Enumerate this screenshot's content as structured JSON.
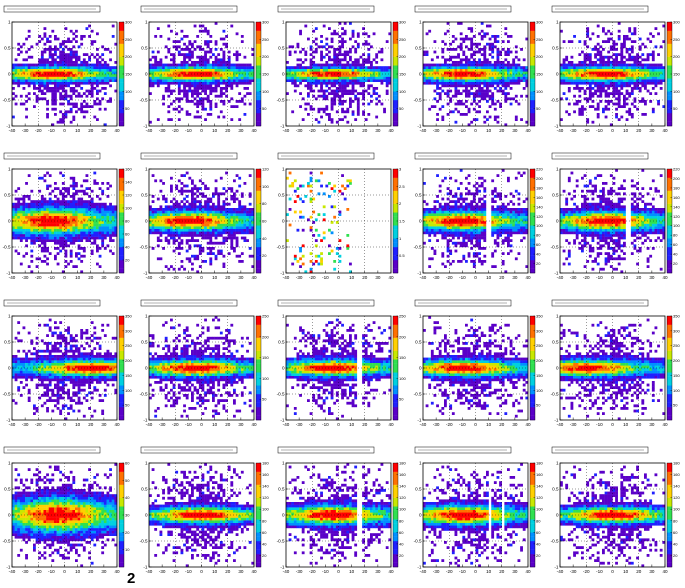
{
  "page_number": "2",
  "colors": {
    "palette": [
      "#5a00c8",
      "#2020ff",
      "#0090ff",
      "#00d0e0",
      "#30e050",
      "#c8e800",
      "#ffd000",
      "#ff7000",
      "#ff0000"
    ],
    "frame": "#000000",
    "background": "#ffffff"
  },
  "chart_data": [
    {
      "type": "heatmap",
      "panel": 1,
      "xticks": [
        "-40",
        "-30",
        "-20",
        "-10",
        "0",
        "10",
        "20",
        "30",
        "40"
      ],
      "yticks": [
        "1",
        "0.5",
        "0",
        "-0.5",
        "-1"
      ],
      "zticks": [
        "300",
        "250",
        "200",
        "150",
        "100",
        "50"
      ],
      "xlim": [
        -40,
        40
      ],
      "ylim": [
        -1,
        1
      ],
      "zmax": 300,
      "core_width": 0.12,
      "peak_x": -10,
      "gaps": []
    },
    {
      "type": "heatmap",
      "panel": 2,
      "xticks": [
        "-40",
        "-30",
        "-20",
        "-10",
        "0",
        "10",
        "20",
        "30",
        "40"
      ],
      "yticks": [
        "1",
        "0.5",
        "0",
        "-0.5",
        "-1"
      ],
      "zticks": [
        "300",
        "250",
        "200",
        "150",
        "100",
        "50"
      ],
      "xlim": [
        -40,
        40
      ],
      "ylim": [
        -1,
        1
      ],
      "zmax": 300,
      "core_width": 0.12,
      "peak_x": -5,
      "gaps": []
    },
    {
      "type": "heatmap",
      "panel": 3,
      "xticks": [
        "-40",
        "-30",
        "-20",
        "-10",
        "0",
        "10",
        "20",
        "30",
        "40"
      ],
      "yticks": [
        "1",
        "0.5",
        "0",
        "-0.5",
        "-1"
      ],
      "zticks": [
        "300",
        "250",
        "200",
        "150",
        "100",
        "50"
      ],
      "xlim": [
        -40,
        40
      ],
      "ylim": [
        -1,
        1
      ],
      "zmax": 300,
      "core_width": 0.1,
      "peak_x": -5,
      "gaps": []
    },
    {
      "type": "heatmap",
      "panel": 4,
      "xticks": [
        "-40",
        "-30",
        "-20",
        "-10",
        "0",
        "10",
        "20",
        "30",
        "40"
      ],
      "yticks": [
        "1",
        "0.5",
        "0",
        "-0.5",
        "-1"
      ],
      "zticks": [
        "300",
        "250",
        "200",
        "150",
        "100",
        "50"
      ],
      "xlim": [
        -40,
        40
      ],
      "ylim": [
        -1,
        1
      ],
      "zmax": 300,
      "core_width": 0.12,
      "peak_x": -10,
      "gaps": []
    },
    {
      "type": "heatmap",
      "panel": 5,
      "xticks": [
        "-40",
        "-30",
        "-20",
        "-10",
        "0",
        "10",
        "20",
        "30",
        "40"
      ],
      "yticks": [
        "1",
        "0.5",
        "0",
        "-0.5",
        "-1"
      ],
      "zticks": [
        "300",
        "250",
        "200",
        "150",
        "100",
        "50"
      ],
      "xlim": [
        -40,
        40
      ],
      "ylim": [
        -1,
        1
      ],
      "zmax": 300,
      "core_width": 0.12,
      "peak_x": -5,
      "gaps": []
    },
    {
      "type": "heatmap",
      "panel": 6,
      "xticks": [
        "-40",
        "-30",
        "-20",
        "-10",
        "0",
        "10",
        "20",
        "30",
        "40"
      ],
      "yticks": [
        "1",
        "0.5",
        "0",
        "-0.5",
        "-1"
      ],
      "zticks": [
        "160",
        "140",
        "120",
        "100",
        "80",
        "60",
        "40",
        "20"
      ],
      "xlim": [
        -40,
        40
      ],
      "ylim": [
        -1,
        1
      ],
      "zmax": 160,
      "core_width": 0.22,
      "peak_x": -10,
      "gaps": []
    },
    {
      "type": "heatmap",
      "panel": 7,
      "xticks": [
        "-40",
        "-30",
        "-20",
        "-10",
        "0",
        "10",
        "20",
        "30",
        "40"
      ],
      "yticks": [
        "1",
        "0.5",
        "0",
        "-0.5",
        "-1"
      ],
      "zticks": [
        "120",
        "100",
        "80",
        "60",
        "40",
        "20"
      ],
      "xlim": [
        -40,
        40
      ],
      "ylim": [
        -1,
        1
      ],
      "zmax": 120,
      "core_width": 0.16,
      "peak_x": -10,
      "gaps": []
    },
    {
      "type": "heatmap",
      "panel": 8,
      "xticks": [
        "-40",
        "-30",
        "-20",
        "-10",
        "0",
        "10",
        "20",
        "30",
        "40"
      ],
      "yticks": [
        "1",
        "0.5",
        "0",
        "-0.5",
        "-1"
      ],
      "zticks": [
        "3",
        "2.5",
        "2",
        "1.5",
        "1",
        "0.5"
      ],
      "xlim": [
        -40,
        40
      ],
      "ylim": [
        -1,
        1
      ],
      "zmax": 3,
      "core_width": 0.6,
      "peak_x": -20,
      "gaps": [],
      "sparse": true
    },
    {
      "type": "heatmap",
      "panel": 9,
      "xticks": [
        "-40",
        "-30",
        "-20",
        "-10",
        "0",
        "10",
        "20",
        "30",
        "40"
      ],
      "yticks": [
        "1",
        "0.5",
        "0",
        "-0.5",
        "-1"
      ],
      "zticks": [
        "220",
        "200",
        "180",
        "160",
        "140",
        "120",
        "100",
        "80",
        "60",
        "40",
        "20"
      ],
      "xlim": [
        -40,
        40
      ],
      "ylim": [
        -1,
        1
      ],
      "zmax": 220,
      "core_width": 0.16,
      "peak_x": -10,
      "gaps": [
        [
          8,
          12
        ]
      ]
    },
    {
      "type": "heatmap",
      "panel": 10,
      "xticks": [
        "-40",
        "-30",
        "-20",
        "-10",
        "0",
        "10",
        "20",
        "30",
        "40"
      ],
      "yticks": [
        "1",
        "0.5",
        "0",
        "-0.5",
        "-1"
      ],
      "zticks": [
        "220",
        "200",
        "180",
        "160",
        "140",
        "120",
        "100",
        "80",
        "60",
        "40",
        "20"
      ],
      "xlim": [
        -40,
        40
      ],
      "ylim": [
        -1,
        1
      ],
      "zmax": 220,
      "core_width": 0.16,
      "peak_x": -5,
      "gaps": [
        [
          10,
          13
        ]
      ]
    },
    {
      "type": "heatmap",
      "panel": 11,
      "xticks": [
        "-40",
        "-30",
        "-20",
        "-10",
        "0",
        "10",
        "20",
        "30",
        "40"
      ],
      "yticks": [
        "1",
        "0.5",
        "0",
        "-0.5",
        "-1"
      ],
      "zticks": [
        "350",
        "300",
        "250",
        "200",
        "150",
        "100",
        "50"
      ],
      "xlim": [
        -40,
        40
      ],
      "ylim": [
        -1,
        1
      ],
      "zmax": 350,
      "core_width": 0.14,
      "peak_x": 20,
      "gaps": []
    },
    {
      "type": "heatmap",
      "panel": 12,
      "xticks": [
        "-40",
        "-30",
        "-20",
        "-10",
        "0",
        "10",
        "20",
        "30",
        "40"
      ],
      "yticks": [
        "1",
        "0.5",
        "0",
        "-0.5",
        "-1"
      ],
      "zticks": [
        "250",
        "200",
        "150",
        "100",
        "50"
      ],
      "xlim": [
        -40,
        40
      ],
      "ylim": [
        -1,
        1
      ],
      "zmax": 250,
      "core_width": 0.14,
      "peak_x": -5,
      "gaps": []
    },
    {
      "type": "heatmap",
      "panel": 13,
      "xticks": [
        "-40",
        "-30",
        "-20",
        "-10",
        "0",
        "10",
        "20",
        "30",
        "40"
      ],
      "yticks": [
        "1",
        "0.5",
        "0",
        "-0.5",
        "-1"
      ],
      "zticks": [
        "250",
        "200",
        "150",
        "100",
        "50"
      ],
      "xlim": [
        -40,
        40
      ],
      "ylim": [
        -1,
        1
      ],
      "zmax": 250,
      "core_width": 0.14,
      "peak_x": -5,
      "gaps": [
        [
          14,
          17
        ]
      ]
    },
    {
      "type": "heatmap",
      "panel": 14,
      "xticks": [
        "-40",
        "-30",
        "-20",
        "-10",
        "0",
        "10",
        "20",
        "30",
        "40"
      ],
      "yticks": [
        "1",
        "0.5",
        "0",
        "-0.5",
        "-1"
      ],
      "zticks": [
        "350",
        "300",
        "250",
        "200",
        "150",
        "100",
        "50"
      ],
      "xlim": [
        -40,
        40
      ],
      "ylim": [
        -1,
        1
      ],
      "zmax": 350,
      "core_width": 0.14,
      "peak_x": -10,
      "gaps": []
    },
    {
      "type": "heatmap",
      "panel": 15,
      "xticks": [
        "-40",
        "-30",
        "-20",
        "-10",
        "0",
        "10",
        "20",
        "30",
        "40"
      ],
      "yticks": [
        "1",
        "0.5",
        "0",
        "-0.5",
        "-1"
      ],
      "zticks": [
        "350",
        "300",
        "250",
        "200",
        "150",
        "100",
        "50"
      ],
      "xlim": [
        -40,
        40
      ],
      "ylim": [
        -1,
        1
      ],
      "zmax": 350,
      "core_width": 0.14,
      "peak_x": -20,
      "gaps": []
    },
    {
      "type": "heatmap",
      "panel": 16,
      "xticks": [
        "-40",
        "-30",
        "-20",
        "-10",
        "0",
        "10",
        "20",
        "30",
        "40"
      ],
      "yticks": [
        "1",
        "0.5",
        "0",
        "-0.5",
        "-1"
      ],
      "zticks": [
        "60",
        "50",
        "40",
        "30",
        "20",
        "10"
      ],
      "xlim": [
        -40,
        40
      ],
      "ylim": [
        -1,
        1
      ],
      "zmax": 60,
      "core_width": 0.28,
      "peak_x": -5,
      "gaps": []
    },
    {
      "type": "heatmap",
      "panel": 17,
      "xticks": [
        "-40",
        "-30",
        "-20",
        "-10",
        "0",
        "10",
        "20",
        "30",
        "40"
      ],
      "yticks": [
        "1",
        "0.5",
        "0",
        "-0.5",
        "-1"
      ],
      "zticks": [
        "180",
        "160",
        "140",
        "120",
        "100",
        "80",
        "60",
        "40",
        "20"
      ],
      "xlim": [
        -40,
        40
      ],
      "ylim": [
        -1,
        1
      ],
      "zmax": 180,
      "core_width": 0.14,
      "peak_x": 0,
      "gaps": []
    },
    {
      "type": "heatmap",
      "panel": 18,
      "xticks": [
        "-40",
        "-30",
        "-20",
        "-10",
        "0",
        "10",
        "20",
        "30",
        "40"
      ],
      "yticks": [
        "1",
        "0.5",
        "0",
        "-0.5",
        "-1"
      ],
      "zticks": [
        "180",
        "160",
        "140",
        "120",
        "100",
        "80",
        "60",
        "40",
        "20"
      ],
      "xlim": [
        -40,
        40
      ],
      "ylim": [
        -1,
        1
      ],
      "zmax": 180,
      "core_width": 0.16,
      "peak_x": -5,
      "gaps": [
        [
          14,
          17
        ]
      ]
    },
    {
      "type": "heatmap",
      "panel": 19,
      "xticks": [
        "-40",
        "-30",
        "-20",
        "-10",
        "0",
        "10",
        "20",
        "30",
        "40"
      ],
      "yticks": [
        "1",
        "0.5",
        "0",
        "-0.5",
        "-1"
      ],
      "zticks": [
        "180",
        "160",
        "140",
        "120",
        "100",
        "80",
        "60",
        "40",
        "20"
      ],
      "xlim": [
        -40,
        40
      ],
      "ylim": [
        -1,
        1
      ],
      "zmax": 180,
      "core_width": 0.16,
      "peak_x": -10,
      "gaps": [
        [
          10,
          12
        ],
        [
          20,
          22
        ]
      ]
    },
    {
      "type": "heatmap",
      "panel": 20,
      "xticks": [
        "-40",
        "-30",
        "-20",
        "-10",
        "0",
        "10",
        "20",
        "30",
        "40"
      ],
      "yticks": [
        "1",
        "0.5",
        "0",
        "-0.5",
        "-1"
      ],
      "zticks": [
        "180",
        "160",
        "140",
        "120",
        "100",
        "80",
        "60",
        "40",
        "20"
      ],
      "xlim": [
        -40,
        40
      ],
      "ylim": [
        -1,
        1
      ],
      "zmax": 180,
      "core_width": 0.14,
      "peak_x": 0,
      "gaps": []
    }
  ]
}
